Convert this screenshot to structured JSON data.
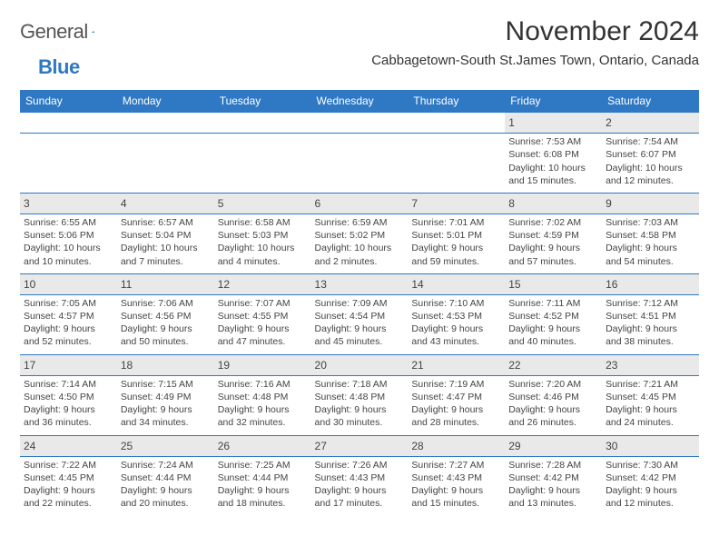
{
  "brand": {
    "part1": "General",
    "part2": "Blue",
    "accent": "#2f78c4"
  },
  "title": "November 2024",
  "location": "Cabbagetown-South St.James Town, Ontario, Canada",
  "colors": {
    "header_bg": "#2f78c4",
    "header_fg": "#ffffff",
    "grid_border": "#2f78c4",
    "daynum_bg": "#e9e9e9",
    "text": "#444444"
  },
  "fonts": {
    "title_size": 30,
    "location_size": 15,
    "dayhead_size": 12,
    "cell_size": 10.5
  },
  "day_headers": [
    "Sunday",
    "Monday",
    "Tuesday",
    "Wednesday",
    "Thursday",
    "Friday",
    "Saturday"
  ],
  "weeks": [
    {
      "nums": [
        "",
        "",
        "",
        "",
        "",
        "1",
        "2"
      ],
      "data": [
        null,
        null,
        null,
        null,
        null,
        {
          "sunrise": "Sunrise: 7:53 AM",
          "sunset": "Sunset: 6:08 PM",
          "daylight": "Daylight: 10 hours and 15 minutes."
        },
        {
          "sunrise": "Sunrise: 7:54 AM",
          "sunset": "Sunset: 6:07 PM",
          "daylight": "Daylight: 10 hours and 12 minutes."
        }
      ]
    },
    {
      "nums": [
        "3",
        "4",
        "5",
        "6",
        "7",
        "8",
        "9"
      ],
      "data": [
        {
          "sunrise": "Sunrise: 6:55 AM",
          "sunset": "Sunset: 5:06 PM",
          "daylight": "Daylight: 10 hours and 10 minutes."
        },
        {
          "sunrise": "Sunrise: 6:57 AM",
          "sunset": "Sunset: 5:04 PM",
          "daylight": "Daylight: 10 hours and 7 minutes."
        },
        {
          "sunrise": "Sunrise: 6:58 AM",
          "sunset": "Sunset: 5:03 PM",
          "daylight": "Daylight: 10 hours and 4 minutes."
        },
        {
          "sunrise": "Sunrise: 6:59 AM",
          "sunset": "Sunset: 5:02 PM",
          "daylight": "Daylight: 10 hours and 2 minutes."
        },
        {
          "sunrise": "Sunrise: 7:01 AM",
          "sunset": "Sunset: 5:01 PM",
          "daylight": "Daylight: 9 hours and 59 minutes."
        },
        {
          "sunrise": "Sunrise: 7:02 AM",
          "sunset": "Sunset: 4:59 PM",
          "daylight": "Daylight: 9 hours and 57 minutes."
        },
        {
          "sunrise": "Sunrise: 7:03 AM",
          "sunset": "Sunset: 4:58 PM",
          "daylight": "Daylight: 9 hours and 54 minutes."
        }
      ]
    },
    {
      "nums": [
        "10",
        "11",
        "12",
        "13",
        "14",
        "15",
        "16"
      ],
      "data": [
        {
          "sunrise": "Sunrise: 7:05 AM",
          "sunset": "Sunset: 4:57 PM",
          "daylight": "Daylight: 9 hours and 52 minutes."
        },
        {
          "sunrise": "Sunrise: 7:06 AM",
          "sunset": "Sunset: 4:56 PM",
          "daylight": "Daylight: 9 hours and 50 minutes."
        },
        {
          "sunrise": "Sunrise: 7:07 AM",
          "sunset": "Sunset: 4:55 PM",
          "daylight": "Daylight: 9 hours and 47 minutes."
        },
        {
          "sunrise": "Sunrise: 7:09 AM",
          "sunset": "Sunset: 4:54 PM",
          "daylight": "Daylight: 9 hours and 45 minutes."
        },
        {
          "sunrise": "Sunrise: 7:10 AM",
          "sunset": "Sunset: 4:53 PM",
          "daylight": "Daylight: 9 hours and 43 minutes."
        },
        {
          "sunrise": "Sunrise: 7:11 AM",
          "sunset": "Sunset: 4:52 PM",
          "daylight": "Daylight: 9 hours and 40 minutes."
        },
        {
          "sunrise": "Sunrise: 7:12 AM",
          "sunset": "Sunset: 4:51 PM",
          "daylight": "Daylight: 9 hours and 38 minutes."
        }
      ]
    },
    {
      "nums": [
        "17",
        "18",
        "19",
        "20",
        "21",
        "22",
        "23"
      ],
      "data": [
        {
          "sunrise": "Sunrise: 7:14 AM",
          "sunset": "Sunset: 4:50 PM",
          "daylight": "Daylight: 9 hours and 36 minutes."
        },
        {
          "sunrise": "Sunrise: 7:15 AM",
          "sunset": "Sunset: 4:49 PM",
          "daylight": "Daylight: 9 hours and 34 minutes."
        },
        {
          "sunrise": "Sunrise: 7:16 AM",
          "sunset": "Sunset: 4:48 PM",
          "daylight": "Daylight: 9 hours and 32 minutes."
        },
        {
          "sunrise": "Sunrise: 7:18 AM",
          "sunset": "Sunset: 4:48 PM",
          "daylight": "Daylight: 9 hours and 30 minutes."
        },
        {
          "sunrise": "Sunrise: 7:19 AM",
          "sunset": "Sunset: 4:47 PM",
          "daylight": "Daylight: 9 hours and 28 minutes."
        },
        {
          "sunrise": "Sunrise: 7:20 AM",
          "sunset": "Sunset: 4:46 PM",
          "daylight": "Daylight: 9 hours and 26 minutes."
        },
        {
          "sunrise": "Sunrise: 7:21 AM",
          "sunset": "Sunset: 4:45 PM",
          "daylight": "Daylight: 9 hours and 24 minutes."
        }
      ]
    },
    {
      "nums": [
        "24",
        "25",
        "26",
        "27",
        "28",
        "29",
        "30"
      ],
      "data": [
        {
          "sunrise": "Sunrise: 7:22 AM",
          "sunset": "Sunset: 4:45 PM",
          "daylight": "Daylight: 9 hours and 22 minutes."
        },
        {
          "sunrise": "Sunrise: 7:24 AM",
          "sunset": "Sunset: 4:44 PM",
          "daylight": "Daylight: 9 hours and 20 minutes."
        },
        {
          "sunrise": "Sunrise: 7:25 AM",
          "sunset": "Sunset: 4:44 PM",
          "daylight": "Daylight: 9 hours and 18 minutes."
        },
        {
          "sunrise": "Sunrise: 7:26 AM",
          "sunset": "Sunset: 4:43 PM",
          "daylight": "Daylight: 9 hours and 17 minutes."
        },
        {
          "sunrise": "Sunrise: 7:27 AM",
          "sunset": "Sunset: 4:43 PM",
          "daylight": "Daylight: 9 hours and 15 minutes."
        },
        {
          "sunrise": "Sunrise: 7:28 AM",
          "sunset": "Sunset: 4:42 PM",
          "daylight": "Daylight: 9 hours and 13 minutes."
        },
        {
          "sunrise": "Sunrise: 7:30 AM",
          "sunset": "Sunset: 4:42 PM",
          "daylight": "Daylight: 9 hours and 12 minutes."
        }
      ]
    }
  ]
}
